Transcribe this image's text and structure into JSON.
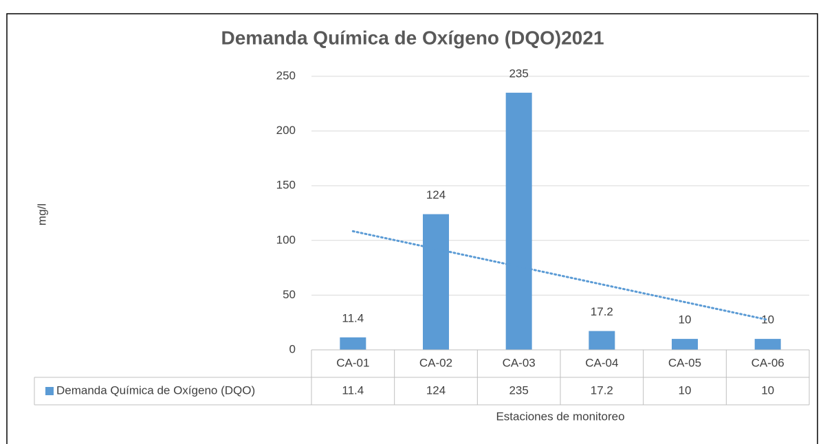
{
  "chart_data": {
    "type": "bar",
    "title": "Demanda Química de Oxígeno (DQO)2021",
    "y_label": "mg/l",
    "x_label": "Estaciones de monitoreo",
    "categories": [
      "CA-01",
      "CA-02",
      "CA-03",
      "CA-04",
      "CA-05",
      "CA-06"
    ],
    "series": [
      {
        "name": "Demanda Química de Oxígeno (DQO)",
        "color": "#5b9bd5",
        "values": [
          11.4,
          124,
          235,
          17.2,
          10,
          10
        ]
      }
    ],
    "ylim": [
      0,
      250
    ],
    "yticks": [
      0,
      50,
      100,
      150,
      200,
      250
    ],
    "grid": true,
    "trendline": "linear",
    "data_table": true
  }
}
